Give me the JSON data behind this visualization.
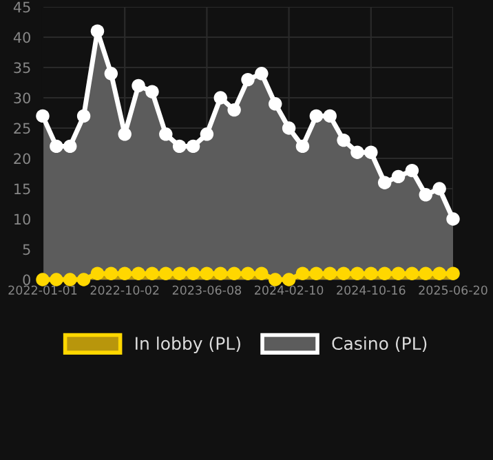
{
  "chart_data": {
    "type": "area",
    "categories": [
      "2022-01-01",
      null,
      null,
      null,
      null,
      null,
      "2022-10-02",
      null,
      null,
      null,
      null,
      null,
      "2023-06-08",
      null,
      null,
      null,
      null,
      null,
      "2024-02-10",
      null,
      null,
      null,
      null,
      null,
      "2024-10-16",
      null,
      null,
      null,
      null,
      null,
      "2025-06-20"
    ],
    "series": [
      {
        "name": "In lobby (PL)",
        "color": "#ffd700",
        "values": [
          0,
          0,
          0,
          0,
          1,
          1,
          1,
          1,
          1,
          1,
          1,
          1,
          1,
          1,
          1,
          1,
          1,
          0,
          0,
          1,
          1,
          1,
          1,
          1,
          1,
          1,
          1,
          1,
          1,
          1,
          1
        ]
      },
      {
        "name": "Casino (PL)",
        "color": "#ffffff",
        "values": [
          27,
          22,
          22,
          27,
          41,
          34,
          24,
          32,
          31,
          24,
          22,
          22,
          24,
          30,
          28,
          33,
          34,
          29,
          25,
          22,
          27,
          27,
          23,
          21,
          21,
          16,
          17,
          18,
          14,
          15,
          10
        ]
      }
    ],
    "ylim": [
      0,
      45
    ],
    "yticks": [
      0,
      5,
      10,
      15,
      20,
      25,
      30,
      35,
      40,
      45
    ],
    "grid": true,
    "legend": "bottom",
    "marker": "circle",
    "line_style": "solid"
  }
}
